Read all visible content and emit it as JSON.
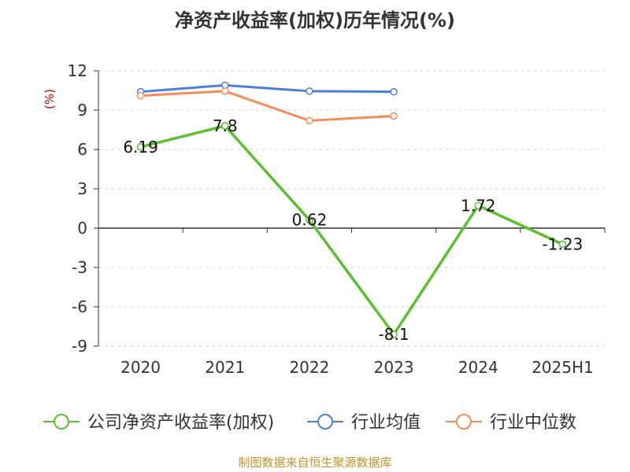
{
  "source_note": "制图数据来自恒生聚源数据库",
  "colors": {
    "company": "#5cc02e",
    "industry_avg": "#4a7fdb",
    "industry_median": "#f68c5a",
    "unit_label": "#cc0000",
    "source_note": "#c8912c",
    "axis": "#333333",
    "grid": "#cccccc"
  },
  "chart_data": {
    "type": "line",
    "title": "净资产收益率(加权)历年情况(%)",
    "ylabel": "(%)",
    "xlabel": "",
    "categories": [
      "2020",
      "2021",
      "2022",
      "2023",
      "2024",
      "2025H1"
    ],
    "ylim": [
      -9,
      12
    ],
    "yticks": [
      12,
      9,
      6,
      3,
      0,
      -3,
      -6,
      -9
    ],
    "grid": true,
    "legend_position": "bottom",
    "series": [
      {
        "name": "公司净资产收益率(加权)",
        "values": [
          6.19,
          7.8,
          0.62,
          -8.1,
          1.72,
          -1.23
        ],
        "labels": [
          "6.19",
          "7.8",
          "0.62",
          "-8.1",
          "1.72",
          "-1.23"
        ]
      },
      {
        "name": "行业均值",
        "values": [
          10.4,
          10.9,
          10.45,
          10.4,
          null,
          null
        ]
      },
      {
        "name": "行业中位数",
        "values": [
          10.1,
          10.45,
          8.2,
          8.55,
          null,
          null
        ]
      }
    ]
  }
}
